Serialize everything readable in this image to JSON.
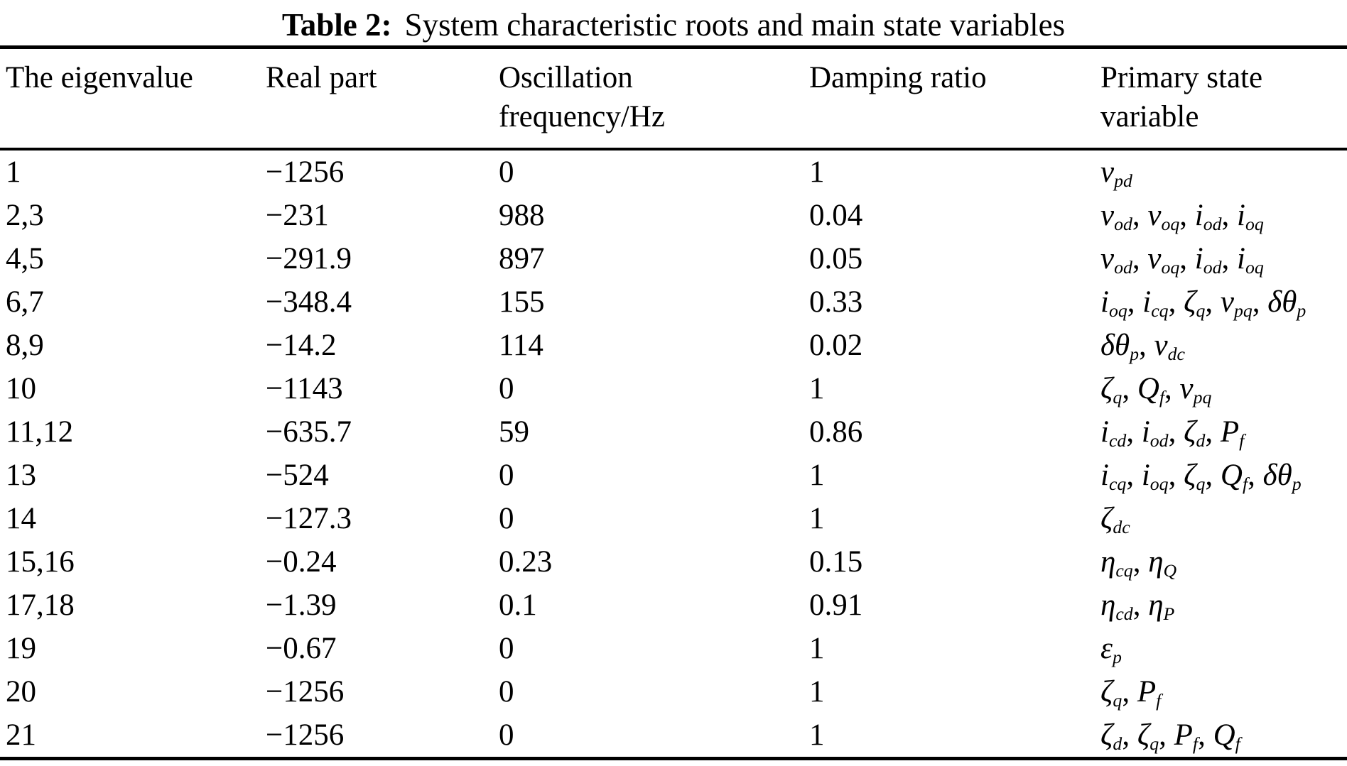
{
  "title": {
    "label": "Table 2:",
    "text": "System characteristic roots and main state variables"
  },
  "table": {
    "headers": [
      "The eigenvalue",
      "Real part",
      "Oscillation\nfrequency/Hz",
      "Damping ratio",
      "Primary state\nvariable"
    ],
    "rows": [
      {
        "eigenvalue": "1",
        "real_part": "−1256",
        "oscillation_frequency_hz": "0",
        "damping_ratio": "1",
        "primary_state_variables": "v_{pd}"
      },
      {
        "eigenvalue": "2,3",
        "real_part": "−231",
        "oscillation_frequency_hz": "988",
        "damping_ratio": "0.04",
        "primary_state_variables": "v_{od}, v_{oq}, i_{od}, i_{oq}"
      },
      {
        "eigenvalue": "4,5",
        "real_part": "−291.9",
        "oscillation_frequency_hz": "897",
        "damping_ratio": "0.05",
        "primary_state_variables": "v_{od}, v_{oq}, i_{od}, i_{oq}"
      },
      {
        "eigenvalue": "6,7",
        "real_part": "−348.4",
        "oscillation_frequency_hz": "155",
        "damping_ratio": "0.33",
        "primary_state_variables": "i_{oq}, i_{cq}, ζ_{q}, v_{pq}, δθ_{p}"
      },
      {
        "eigenvalue": "8,9",
        "real_part": "−14.2",
        "oscillation_frequency_hz": "114",
        "damping_ratio": "0.02",
        "primary_state_variables": "δθ_{p}, v_{dc}"
      },
      {
        "eigenvalue": "10",
        "real_part": "−1143",
        "oscillation_frequency_hz": "0",
        "damping_ratio": "1",
        "primary_state_variables": "ζ_{q}, Q_{f}, v_{pq}"
      },
      {
        "eigenvalue": "11,12",
        "real_part": "−635.7",
        "oscillation_frequency_hz": "59",
        "damping_ratio": "0.86",
        "primary_state_variables": "i_{cd}, i_{od}, ζ_{d}, P_{f}"
      },
      {
        "eigenvalue": "13",
        "real_part": "−524",
        "oscillation_frequency_hz": "0",
        "damping_ratio": "1",
        "primary_state_variables": "i_{cq}, i_{oq}, ζ_{q}, Q_{f}, δθ_{p}"
      },
      {
        "eigenvalue": "14",
        "real_part": "−127.3",
        "oscillation_frequency_hz": "0",
        "damping_ratio": "1",
        "primary_state_variables": "ζ_{dc}"
      },
      {
        "eigenvalue": "15,16",
        "real_part": "−0.24",
        "oscillation_frequency_hz": "0.23",
        "damping_ratio": "0.15",
        "primary_state_variables": "η_{cq}, η_{Q}"
      },
      {
        "eigenvalue": "17,18",
        "real_part": "−1.39",
        "oscillation_frequency_hz": "0.1",
        "damping_ratio": "0.91",
        "primary_state_variables": "η_{cd}, η_{P}"
      },
      {
        "eigenvalue": "19",
        "real_part": "−0.67",
        "oscillation_frequency_hz": "0",
        "damping_ratio": "1",
        "primary_state_variables": "ε_{p}"
      },
      {
        "eigenvalue": "20",
        "real_part": "−1256",
        "oscillation_frequency_hz": "0",
        "damping_ratio": "1",
        "primary_state_variables": "ζ_{q}, P_{f}"
      },
      {
        "eigenvalue": "21",
        "real_part": "−1256",
        "oscillation_frequency_hz": "0",
        "damping_ratio": "1",
        "primary_state_variables": "ζ_{d}, ζ_{q}, P_{f}, Q_{f}"
      }
    ]
  }
}
